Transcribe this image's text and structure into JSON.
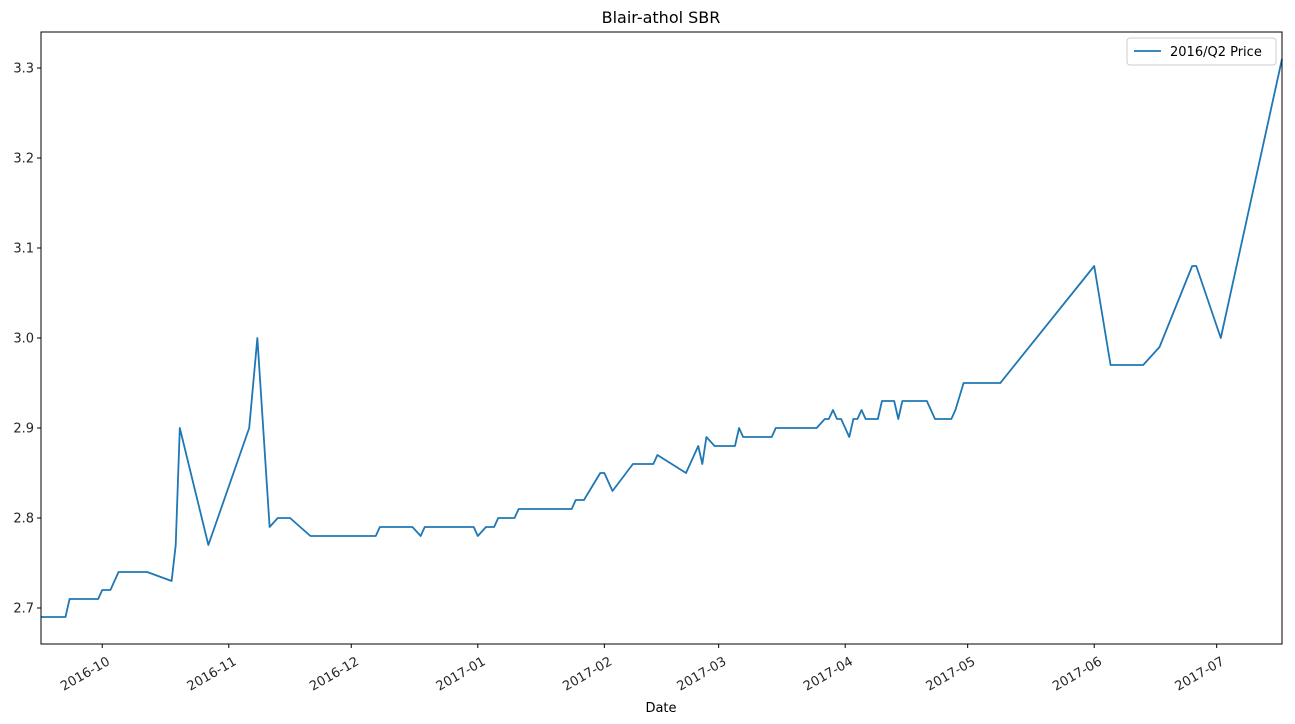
{
  "chart_data": {
    "type": "line",
    "title": "Blair-athol SBR",
    "xlabel": "Date",
    "ylabel": "",
    "xlim": [
      "2016-09-16",
      "2017-07-17"
    ],
    "ylim": [
      2.66,
      3.34
    ],
    "grid": false,
    "legend_position": "top-right",
    "x_ticks": [
      "2016-10-01",
      "2016-11-01",
      "2016-12-01",
      "2017-01-01",
      "2017-02-01",
      "2017-03-01",
      "2017-04-01",
      "2017-05-01",
      "2017-06-01",
      "2017-07-01"
    ],
    "x_tick_labels": [
      "2016-10",
      "2016-11",
      "2016-12",
      "2017-01",
      "2017-02",
      "2017-03",
      "2017-04",
      "2017-05",
      "2017-06",
      "2017-07"
    ],
    "y_ticks": [
      2.7,
      2.8,
      2.9,
      3.0,
      3.1,
      3.2,
      3.3
    ],
    "y_tick_labels": [
      "2.7",
      "2.8",
      "2.9",
      "3.0",
      "3.1",
      "3.2",
      "3.3"
    ],
    "series": [
      {
        "name": "2016/Q2 Price",
        "color": "#1f77b4",
        "x": [
          "2016-09-16",
          "2016-09-22",
          "2016-09-23",
          "2016-09-30",
          "2016-10-01",
          "2016-10-03",
          "2016-10-05",
          "2016-10-12",
          "2016-10-18",
          "2016-10-19",
          "2016-10-20",
          "2016-10-27",
          "2016-11-06",
          "2016-11-08",
          "2016-11-11",
          "2016-11-13",
          "2016-11-16",
          "2016-11-21",
          "2016-12-07",
          "2016-12-08",
          "2016-12-16",
          "2016-12-18",
          "2016-12-19",
          "2016-12-31",
          "2017-01-01",
          "2017-01-03",
          "2017-01-05",
          "2017-01-06",
          "2017-01-10",
          "2017-01-11",
          "2017-01-24",
          "2017-01-25",
          "2017-01-27",
          "2017-01-31",
          "2017-02-01",
          "2017-02-03",
          "2017-02-08",
          "2017-02-13",
          "2017-02-14",
          "2017-02-21",
          "2017-02-24",
          "2017-02-25",
          "2017-02-26",
          "2017-02-28",
          "2017-03-05",
          "2017-03-06",
          "2017-03-07",
          "2017-03-14",
          "2017-03-15",
          "2017-03-25",
          "2017-03-27",
          "2017-03-28",
          "2017-03-29",
          "2017-03-30",
          "2017-03-31",
          "2017-04-02",
          "2017-04-03",
          "2017-04-04",
          "2017-04-05",
          "2017-04-06",
          "2017-04-09",
          "2017-04-10",
          "2017-04-13",
          "2017-04-14",
          "2017-04-15",
          "2017-04-21",
          "2017-04-23",
          "2017-04-27",
          "2017-04-28",
          "2017-04-30",
          "2017-05-09",
          "2017-06-01",
          "2017-06-05",
          "2017-06-13",
          "2017-06-17",
          "2017-06-25",
          "2017-06-26",
          "2017-07-02",
          "2017-07-17"
        ],
        "values": [
          2.69,
          2.69,
          2.71,
          2.71,
          2.72,
          2.72,
          2.74,
          2.74,
          2.73,
          2.77,
          2.9,
          2.77,
          2.9,
          3.0,
          2.79,
          2.8,
          2.8,
          2.78,
          2.78,
          2.79,
          2.79,
          2.78,
          2.79,
          2.79,
          2.78,
          2.79,
          2.79,
          2.8,
          2.8,
          2.81,
          2.81,
          2.82,
          2.82,
          2.85,
          2.85,
          2.83,
          2.86,
          2.86,
          2.87,
          2.85,
          2.88,
          2.86,
          2.89,
          2.88,
          2.88,
          2.9,
          2.89,
          2.89,
          2.9,
          2.9,
          2.91,
          2.91,
          2.92,
          2.91,
          2.91,
          2.89,
          2.91,
          2.91,
          2.92,
          2.91,
          2.91,
          2.93,
          2.93,
          2.91,
          2.93,
          2.93,
          2.91,
          2.91,
          2.92,
          2.95,
          2.95,
          3.08,
          2.97,
          2.97,
          2.99,
          3.08,
          3.08,
          3.0,
          3.31
        ]
      }
    ]
  }
}
